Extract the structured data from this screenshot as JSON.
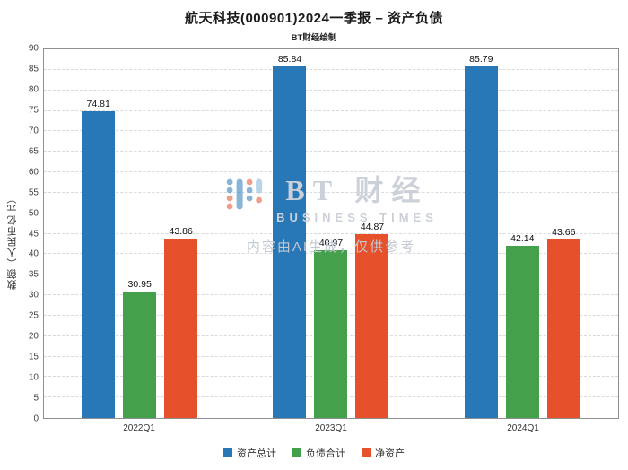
{
  "title": "航天科技(000901)2024一季报 – 资产负债",
  "subtitle": "BT财经绘制",
  "watermark": {
    "brand": "BT 财经",
    "brand_sub": "BUSINESS TIMES",
    "note": "内容由AI生成，仅供参考"
  },
  "chart_data": {
    "type": "bar",
    "title": "航天科技(000901)2024一季报 – 资产负债",
    "categories": [
      "2022Q1",
      "2023Q1",
      "2024Q1"
    ],
    "series": [
      {
        "name": "资产总计",
        "color": "#2878b8",
        "values": [
          74.81,
          85.84,
          85.79
        ]
      },
      {
        "name": "负债合计",
        "color": "#45a04b",
        "values": [
          30.95,
          40.97,
          42.14
        ]
      },
      {
        "name": "净资产",
        "color": "#e6502a",
        "values": [
          43.86,
          44.87,
          43.66
        ]
      }
    ],
    "ylabel": "数额（人民币亿元）",
    "ylim": [
      0,
      90
    ],
    "ytick_step": 5,
    "grid": true,
    "legend_position": "bottom"
  }
}
